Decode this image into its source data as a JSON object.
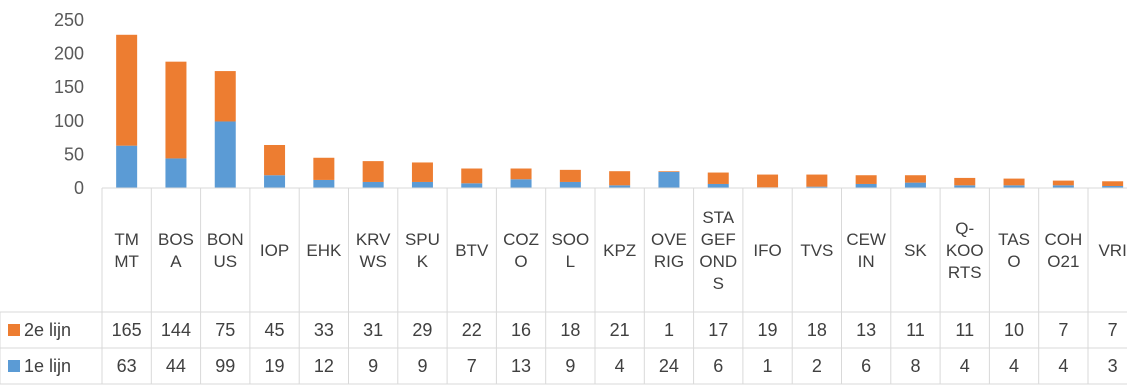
{
  "chart_data": {
    "type": "bar",
    "stacked": true,
    "title": "",
    "xlabel": "",
    "ylabel": "",
    "ylim": [
      0,
      250
    ],
    "yticks": [
      0,
      50,
      100,
      150,
      200,
      250
    ],
    "grid": false,
    "legend": "data-table-left",
    "categories": [
      [
        "TM",
        "MT"
      ],
      [
        "BOS",
        "A"
      ],
      [
        "BON",
        "US"
      ],
      [
        "IOP"
      ],
      [
        "EHK"
      ],
      [
        "KRV",
        "WS"
      ],
      [
        "SPU",
        "K"
      ],
      [
        "BTV"
      ],
      [
        "COZ",
        "O"
      ],
      [
        "SOO",
        "L"
      ],
      [
        "KPZ"
      ],
      [
        "OVE",
        "RIG"
      ],
      [
        "STA",
        "GEF",
        "OND",
        "S"
      ],
      [
        "IFO"
      ],
      [
        "TVS"
      ],
      [
        "CEW",
        "IN"
      ],
      [
        "SK"
      ],
      [
        "Q-",
        "KOO",
        "RTS"
      ],
      [
        "TAS",
        "O"
      ],
      [
        "COH",
        "O21"
      ],
      [
        "VRI"
      ]
    ],
    "series": [
      {
        "name": "1e lijn",
        "color": "#5B9BD5",
        "values": [
          63,
          44,
          99,
          19,
          12,
          9,
          9,
          7,
          13,
          9,
          4,
          24,
          6,
          1,
          2,
          6,
          8,
          4,
          4,
          4,
          3
        ]
      },
      {
        "name": "2e lijn",
        "color": "#ED7D31",
        "values": [
          165,
          144,
          75,
          45,
          33,
          31,
          29,
          22,
          16,
          18,
          21,
          1,
          17,
          19,
          18,
          13,
          11,
          11,
          10,
          7,
          7
        ]
      }
    ],
    "table_rows_order": [
      1,
      0
    ],
    "gridline_color": "#D9D9D9"
  }
}
